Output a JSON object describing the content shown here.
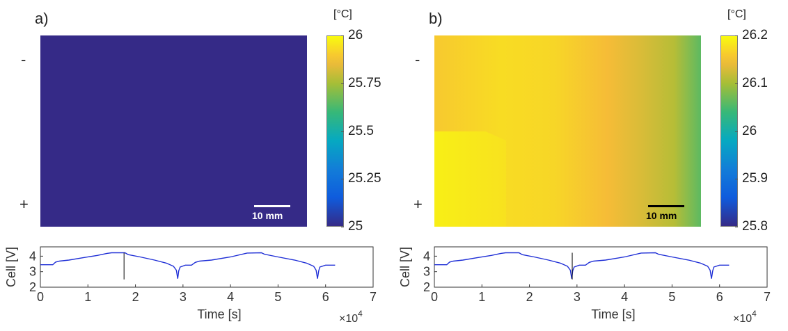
{
  "chart_data": [
    {
      "type": "heatmap",
      "panel_label": "a)",
      "top_label": "-",
      "bottom_label": "+",
      "colorbar": {
        "unit": "[°C]",
        "min": 25,
        "max": 26,
        "ticks": [
          "26",
          "25.75",
          "25.5",
          "25.25",
          "25"
        ]
      },
      "field": "uniform",
      "uniform_value": 25,
      "scale_bar": {
        "label": "10 mm",
        "color": "#ffffff"
      },
      "subplot": {
        "type": "line",
        "ylabel": "Cell [V]",
        "xlabel": "Time [s]",
        "xlim": [
          0,
          70000
        ],
        "ylim": [
          2,
          4.6
        ],
        "x_ticks": [
          "0",
          "1",
          "2",
          "3",
          "4",
          "5",
          "6",
          "7"
        ],
        "y_ticks": [
          "2",
          "3",
          "4"
        ],
        "x_multiplier_base": "×10",
        "x_multiplier_exp": "4",
        "cursor_time": 17600,
        "line_color": "#1f2fd6"
      }
    },
    {
      "type": "heatmap",
      "panel_label": "b)",
      "top_label": "-",
      "bottom_label": "+",
      "colorbar": {
        "unit": "[°C]",
        "min": 25.8,
        "max": 26.2,
        "ticks": [
          "26.2",
          "26.1",
          "26",
          "25.9",
          "25.8"
        ]
      },
      "field": "gradient_horizontal",
      "gradient_stops": [
        {
          "x": 0.0,
          "value": 26.16
        },
        {
          "x": 0.25,
          "value": 26.175
        },
        {
          "x": 0.45,
          "value": 26.17
        },
        {
          "x": 0.65,
          "value": 26.15
        },
        {
          "x": 0.78,
          "value": 26.13
        },
        {
          "x": 0.9,
          "value": 26.11
        },
        {
          "x": 1.0,
          "value": 26.06
        }
      ],
      "scale_bar": {
        "label": "10 mm",
        "color": "#000000"
      },
      "subplot": {
        "type": "line",
        "ylabel": "Cell [V]",
        "xlabel": "Time [s]",
        "xlim": [
          0,
          70000
        ],
        "ylim": [
          2,
          4.6
        ],
        "x_ticks": [
          "0",
          "1",
          "2",
          "3",
          "4",
          "5",
          "6",
          "7"
        ],
        "y_ticks": [
          "2",
          "3",
          "4"
        ],
        "x_multiplier_base": "×10",
        "x_multiplier_exp": "4",
        "cursor_time": 29000,
        "line_color": "#1f2fd6"
      }
    }
  ],
  "voltage_trace": {
    "x": [
      0,
      2600,
      3200,
      4000,
      6000,
      9000,
      12000,
      14000,
      15000,
      17800,
      18500,
      21000,
      24000,
      26500,
      28000,
      28600,
      28900,
      29100,
      29400,
      30500,
      31800,
      32600,
      33500,
      36000,
      40000,
      43500,
      46500,
      47200,
      50000,
      53500,
      56000,
      57500,
      58000,
      58300,
      58550,
      58800,
      60000,
      62000
    ],
    "y": [
      3.45,
      3.45,
      3.62,
      3.68,
      3.75,
      3.9,
      4.05,
      4.18,
      4.22,
      4.22,
      4.1,
      3.95,
      3.75,
      3.55,
      3.35,
      3.1,
      2.55,
      3.05,
      3.3,
      3.42,
      3.42,
      3.6,
      3.68,
      3.75,
      3.95,
      4.2,
      4.22,
      4.12,
      3.95,
      3.75,
      3.55,
      3.35,
      3.1,
      2.55,
      3.05,
      3.3,
      3.42,
      3.42
    ]
  }
}
